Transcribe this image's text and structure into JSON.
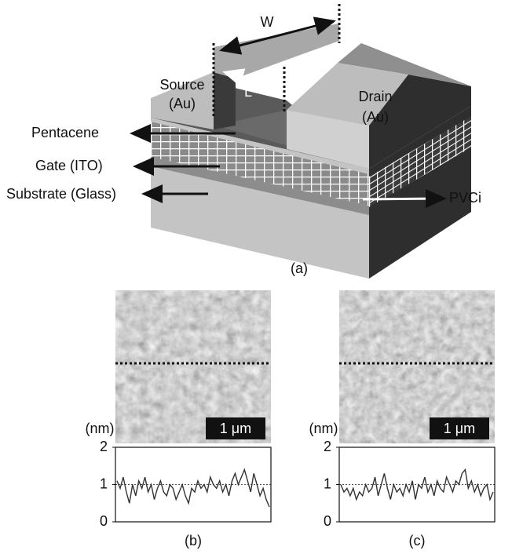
{
  "figure_a": {
    "label": "(a)",
    "width_label": "W",
    "length_label": "L",
    "source": [
      "Source",
      "(Au)"
    ],
    "drain": [
      "Drain",
      "(Au)"
    ],
    "pentacene": "Pentacene",
    "gate": "Gate (ITO)",
    "substrate": "Substrate (Glass)",
    "dielectric": "PVCi"
  },
  "panels": [
    {
      "label": "(b)",
      "scale_bar": "1 μm",
      "axis_unit": "(nm)",
      "ylim": [
        0,
        2
      ],
      "yticks": [
        0,
        1,
        2
      ],
      "profile": [
        1.1,
        0.9,
        1.2,
        0.8,
        0.5,
        1.0,
        0.7,
        1.1,
        0.9,
        1.2,
        0.8,
        1.0,
        0.6,
        0.9,
        1.1,
        0.8,
        0.7,
        1.0,
        0.9,
        0.6,
        0.8,
        1.0,
        0.7,
        0.5,
        0.9,
        0.8,
        1.1,
        0.9,
        1.0,
        0.8,
        1.2,
        1.0,
        0.9,
        1.1,
        0.8,
        1.0,
        0.7,
        1.1,
        1.3,
        1.0,
        1.2,
        1.4,
        1.1,
        0.8,
        1.3,
        1.0,
        0.7,
        0.9,
        0.6,
        0.4
      ]
    },
    {
      "label": "(c)",
      "scale_bar": "1 μm",
      "axis_unit": "(nm)",
      "ylim": [
        0,
        2
      ],
      "yticks": [
        0,
        1,
        2
      ],
      "profile": [
        1.0,
        0.8,
        0.9,
        0.7,
        0.9,
        0.6,
        0.8,
        0.7,
        1.0,
        0.8,
        0.9,
        1.2,
        0.7,
        1.0,
        1.3,
        0.9,
        0.6,
        1.0,
        0.8,
        0.9,
        0.7,
        1.0,
        0.8,
        1.1,
        0.6,
        1.0,
        0.9,
        1.2,
        0.8,
        1.0,
        0.7,
        1.1,
        0.9,
        0.8,
        1.2,
        1.0,
        0.8,
        1.1,
        1.0,
        1.3,
        1.4,
        0.9,
        1.1,
        0.8,
        1.0,
        0.7,
        0.9,
        1.0,
        0.6,
        0.8
      ]
    }
  ]
}
